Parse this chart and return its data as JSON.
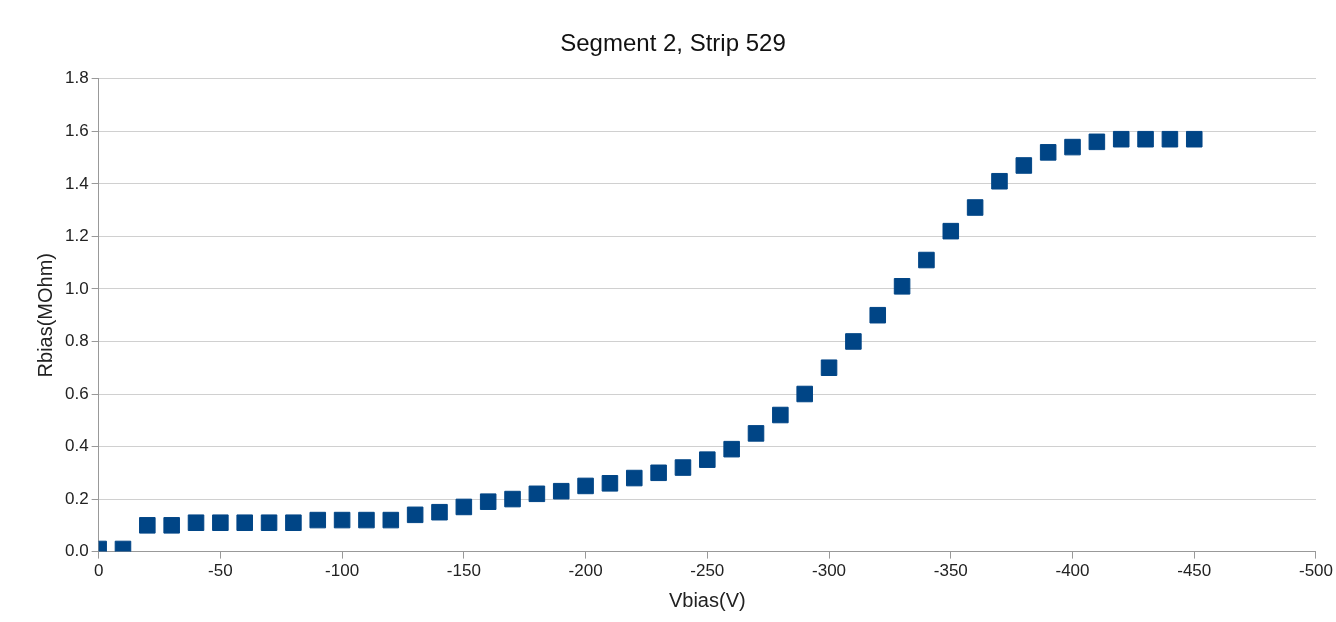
{
  "chart_data": {
    "type": "scatter",
    "title": "Segment 2, Strip 529",
    "xlabel": "Vbias(V)",
    "ylabel": "Rbias(MOhm)",
    "x": [
      0,
      -10,
      -20,
      -30,
      -40,
      -50,
      -60,
      -70,
      -80,
      -90,
      -100,
      -110,
      -120,
      -130,
      -140,
      -150,
      -160,
      -170,
      -180,
      -190,
      -200,
      -210,
      -220,
      -230,
      -240,
      -250,
      -260,
      -270,
      -280,
      -290,
      -300,
      -310,
      -320,
      -330,
      -340,
      -350,
      -360,
      -370,
      -380,
      -390,
      -400,
      -410,
      -420,
      -430,
      -440,
      -450
    ],
    "series": [
      {
        "color": "#004586",
        "values": [
          0.01,
          0.01,
          0.1,
          0.1,
          0.11,
          0.11,
          0.11,
          0.11,
          0.11,
          0.12,
          0.12,
          0.12,
          0.12,
          0.14,
          0.15,
          0.17,
          0.19,
          0.2,
          0.22,
          0.23,
          0.25,
          0.26,
          0.28,
          0.3,
          0.32,
          0.35,
          0.39,
          0.45,
          0.52,
          0.6,
          0.7,
          0.8,
          0.9,
          1.01,
          1.11,
          1.22,
          1.31,
          1.41,
          1.47,
          1.52,
          1.54,
          1.56,
          1.57,
          1.57,
          1.57,
          1.57
        ]
      }
    ],
    "xlim": [
      0,
      -500
    ],
    "xticks": [
      0,
      -50,
      -100,
      -150,
      -200,
      -250,
      -300,
      -350,
      -400,
      -450,
      -500
    ],
    "ylim": [
      0,
      1.8
    ],
    "yticks": [
      {
        "value": 0,
        "label": "0.0"
      },
      0.2,
      0.4,
      0.6,
      0.8,
      {
        "value": 1,
        "label": "1.0"
      },
      1.2,
      1.4,
      1.6,
      1.8
    ],
    "grid": "y",
    "marker": "square",
    "legend": false
  }
}
